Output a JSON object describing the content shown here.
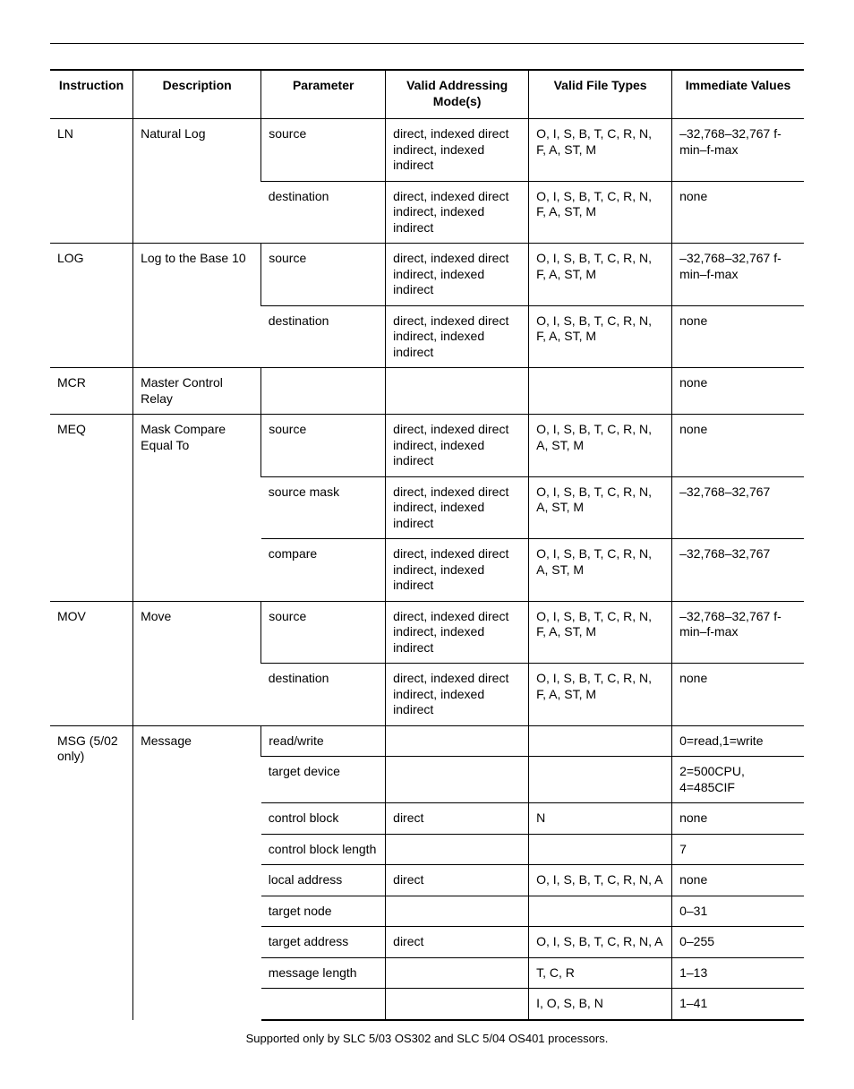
{
  "headers": {
    "instruction": "Instruction",
    "description": "Description",
    "parameter": "Parameter",
    "addressing": "Valid Addressing Mode(s)",
    "filetypes": "Valid File Types",
    "immediate": "Immediate Values"
  },
  "addr_both": "direct, indexed direct indirect, indexed indirect",
  "ft_full": "O, I, S, B, T, C, R, N, F, A, ST, M",
  "ft_no_f": "O, I, S, B, T, C, R, N, A, ST, M",
  "ft_na": "O, I, S, B, T, C, R, N, A",
  "imm_range_fmax": "–32,768–32,767 f-min–f-max",
  "imm_range": "–32,768–32,767",
  "none": "none",
  "ln": {
    "instr": "LN",
    "desc": "Natural Log",
    "p_src": "source",
    "p_dst": "destination"
  },
  "log": {
    "instr": "LOG",
    "desc": "Log to the Base 10",
    "p_src": "source",
    "p_dst": "destination"
  },
  "mcr": {
    "instr": "MCR",
    "desc": "Master Control Relay"
  },
  "meq": {
    "instr": "MEQ",
    "desc": "Mask Compare Equal To",
    "p_src": "source",
    "p_mask": "source mask",
    "p_cmp": "compare"
  },
  "mov": {
    "instr": "MOV",
    "desc": "Move",
    "p_src": "source",
    "p_dst": "destination"
  },
  "msg": {
    "instr": "MSG (5/02 only)",
    "desc": "Message",
    "rows": {
      "rw": {
        "param": "read/write",
        "addr": "",
        "ft": "",
        "imm": "0=read,1=write"
      },
      "td": {
        "param": "target device",
        "addr": "",
        "ft": "",
        "imm": "2=500CPU, 4=485CIF"
      },
      "cb": {
        "param": "control block",
        "addr": "direct",
        "ft": "N",
        "imm": "none"
      },
      "cbl": {
        "param": "control block length",
        "addr": "",
        "ft": "",
        "imm": "7"
      },
      "la": {
        "param": "local address",
        "addr": "direct",
        "ft": "O, I, S, B, T, C, R, N, A",
        "imm": "none"
      },
      "tn": {
        "param": "target node",
        "addr": "",
        "ft": "",
        "imm": "0–31"
      },
      "ta": {
        "param": "target address",
        "addr": "direct",
        "ft": "O, I, S, B, T, C, R, N, A",
        "imm": "0–255"
      },
      "ml1": {
        "param": "message length",
        "addr": "",
        "ft": "T, C, R",
        "imm": "1–13"
      },
      "ml2": {
        "param": "",
        "addr": "",
        "ft": "I, O, S, B, N",
        "imm": "1–41"
      }
    }
  },
  "footnote": "Supported only by SLC 5/03 OS302 and SLC 5/04 OS401 processors."
}
